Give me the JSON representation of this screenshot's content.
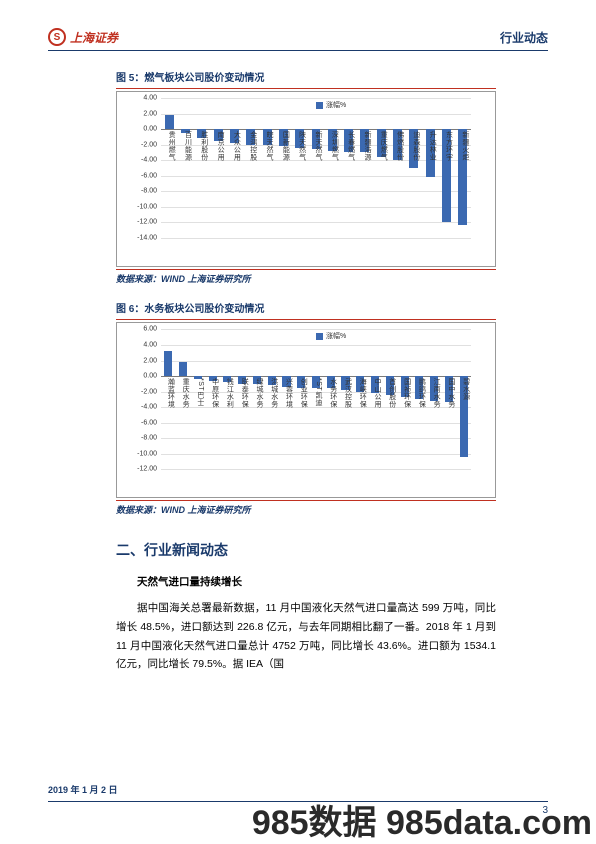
{
  "header": {
    "logo_mark": "S",
    "logo_text": "上海证券",
    "right_label": "行业动态"
  },
  "figure5": {
    "title": "图 5：燃气板块公司股价变动情况",
    "source": "数据来源：WIND  上海证券研究所",
    "legend": "涨幅%",
    "type": "bar",
    "bar_color": "#3b69b1",
    "grid_color": "#e0e0e0",
    "zeroline_color": "#7a7a7a",
    "background_color": "#ffffff",
    "ymin": -14.0,
    "ymax": 4.0,
    "ystep": 2.0,
    "yticks": [
      "4.00",
      "2.00",
      "0.00",
      "-2.00",
      "-4.00",
      "-6.00",
      "-8.00",
      "-10.00",
      "-12.00",
      "-14.00"
    ],
    "categories": [
      "贵州燃气",
      "百川能源",
      "胜利股份",
      "南京公用",
      "大众公用",
      "金鸿控股",
      "皖天然气",
      "国新能源",
      "陕天然气",
      "新天然气",
      "深圳燃气",
      "长春燃气",
      "新疆浩源",
      "重庆燃气",
      "佛燃股份",
      "迪森股份",
      "升达林业",
      "东方环宇",
      "新疆火炬"
    ],
    "values": [
      1.8,
      -0.5,
      -1.2,
      -1.5,
      -1.8,
      -2.0,
      -2.1,
      -2.2,
      -2.4,
      -2.6,
      -2.8,
      -3.0,
      -3.0,
      -3.6,
      -4.0,
      -5.0,
      -6.2,
      -12.0,
      -12.3
    ],
    "label_fontsize": 7,
    "bar_width": 0.55
  },
  "figure6": {
    "title": "图 6：水务板块公司股价变动情况",
    "source": "数据来源：WIND  上海证券研究所",
    "legend": "涨幅%",
    "type": "bar",
    "bar_color": "#3b69b1",
    "grid_color": "#e0e0e0",
    "zeroline_color": "#7a7a7a",
    "background_color": "#ffffff",
    "ymin": -12.0,
    "ymax": 6.0,
    "ystep": 2.0,
    "yticks": [
      "6.00",
      "4.00",
      "2.00",
      "0.00",
      "-2.00",
      "-4.00",
      "-6.00",
      "-8.00",
      "-10.00",
      "-12.00"
    ],
    "categories": [
      "瀚蓝环境",
      "重庆水务",
      "*ST巴士",
      "中原环保",
      "钱江水利",
      "联泰环保",
      "绿城水务",
      "洪城水务",
      "兴蓉环境",
      "创业环保",
      "*ST凯迪",
      "水务环保",
      "武汉控股",
      "海峡环保",
      "中山公用",
      "首创股份",
      "国祯环保",
      "鹏鹞环保",
      "江南水务",
      "国中水务",
      "碧水源"
    ],
    "values": [
      3.2,
      1.8,
      -0.4,
      -0.6,
      -0.8,
      -1.0,
      -1.0,
      -1.2,
      -1.4,
      -1.5,
      -1.6,
      -1.6,
      -1.8,
      -2.0,
      -2.2,
      -2.4,
      -2.7,
      -3.0,
      -3.2,
      -3.3,
      -10.4
    ],
    "label_fontsize": 7,
    "bar_width": 0.55
  },
  "section2": {
    "title": "二、行业新闻动态",
    "subheading": "天然气进口量持续增长",
    "body": "据中国海关总署最新数据，11 月中国液化天然气进口量高达 599 万吨，同比增长 48.5%，进口额达到 226.8 亿元，与去年同期相比翻了一番。2018 年 1 月到 11 月中国液化天然气进口量总计 4752 万吨，同比增长 43.6%。进口额为 1534.1 亿元，同比增长 79.5%。据 IEA（国"
  },
  "footer": {
    "date": "2019 年 1 月 2 日",
    "page": "3"
  },
  "watermark": "985数据 985data.com"
}
